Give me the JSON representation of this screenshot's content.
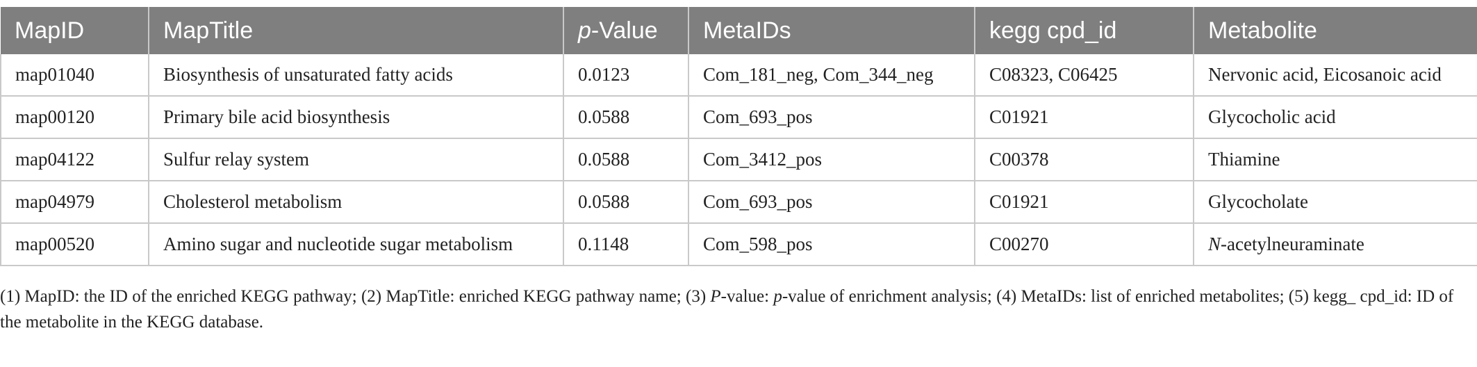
{
  "table": {
    "headers": {
      "map_id": "MapID",
      "map_title": "MapTitle",
      "p_value_italic": "p",
      "p_value_rest": "-Value",
      "meta_ids": "MetaIDs",
      "kegg_cpd_id": "kegg cpd_id",
      "metabolite": "Metabolite"
    },
    "rows": [
      {
        "map_id": "map01040",
        "map_title": "Biosynthesis of unsaturated fatty acids",
        "p_value": "0.0123",
        "meta_ids": "Com_181_neg, Com_344_neg",
        "kegg_cpd_id": "C08323, C06425",
        "metabolite_italic": "",
        "metabolite": "Nervonic acid, Eicosanoic acid"
      },
      {
        "map_id": "map00120",
        "map_title": "Primary bile acid biosynthesis",
        "p_value": "0.0588",
        "meta_ids": "Com_693_pos",
        "kegg_cpd_id": "C01921",
        "metabolite_italic": "",
        "metabolite": "Glycocholic acid"
      },
      {
        "map_id": "map04122",
        "map_title": "Sulfur relay system",
        "p_value": "0.0588",
        "meta_ids": "Com_3412_pos",
        "kegg_cpd_id": "C00378",
        "metabolite_italic": "",
        "metabolite": "Thiamine"
      },
      {
        "map_id": "map04979",
        "map_title": "Cholesterol metabolism",
        "p_value": "0.0588",
        "meta_ids": "Com_693_pos",
        "kegg_cpd_id": "C01921",
        "metabolite_italic": "",
        "metabolite": "Glycocholate"
      },
      {
        "map_id": "map00520",
        "map_title": "Amino sugar and nucleotide sugar metabolism",
        "p_value": "0.1148",
        "meta_ids": "Com_598_pos",
        "kegg_cpd_id": "C00270",
        "metabolite_italic": "N",
        "metabolite": "-acetylneuraminate"
      }
    ]
  },
  "footnote": {
    "part1": "(1) MapID: the ID of the enriched KEGG pathway; (2) MapTitle: enriched KEGG pathway name; (3) ",
    "italic1": "P",
    "part2": "-value: ",
    "italic2": "p",
    "part3": "-value of enrichment analysis; (4) MetaIDs: list of enriched metabolites; (5) kegg_ cpd_id: ID of the metabolite in the KEGG database."
  },
  "colors": {
    "header_bg": "#7f7f7f",
    "header_text": "#ffffff",
    "grid_line": "#c9c9c9",
    "body_text": "#222222"
  }
}
